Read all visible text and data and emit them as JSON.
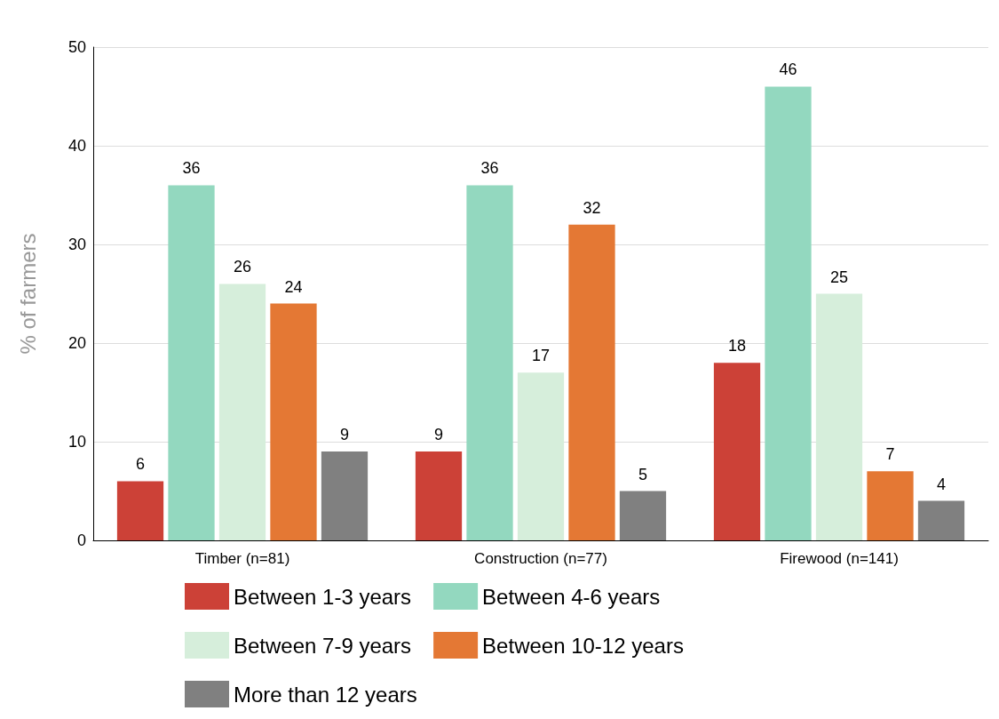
{
  "chart_data": {
    "type": "bar",
    "ylabel": "% of farmers",
    "categories": [
      "Timber (n=81)",
      "Construction (n=77)",
      "Firewood (n=141)"
    ],
    "series": [
      {
        "name": "Between 1-3 years",
        "color": "#cc4137",
        "values": [
          6,
          9,
          18
        ]
      },
      {
        "name": "Between 4-6 years",
        "color": "#93d8bf",
        "values": [
          36,
          36,
          46
        ]
      },
      {
        "name": "Between 7-9 years",
        "color": "#d6eedb",
        "values": [
          26,
          17,
          25
        ]
      },
      {
        "name": "Between 10-12 years",
        "color": "#e47834",
        "values": [
          24,
          32,
          7
        ]
      },
      {
        "name": "More than 12 years",
        "color": "#808080",
        "values": [
          9,
          5,
          4
        ]
      }
    ],
    "ylim": [
      0,
      50
    ],
    "yticks": [
      0,
      10,
      20,
      30,
      40,
      50
    ],
    "grid": "y",
    "legend": "bottom",
    "data_labels": true
  }
}
